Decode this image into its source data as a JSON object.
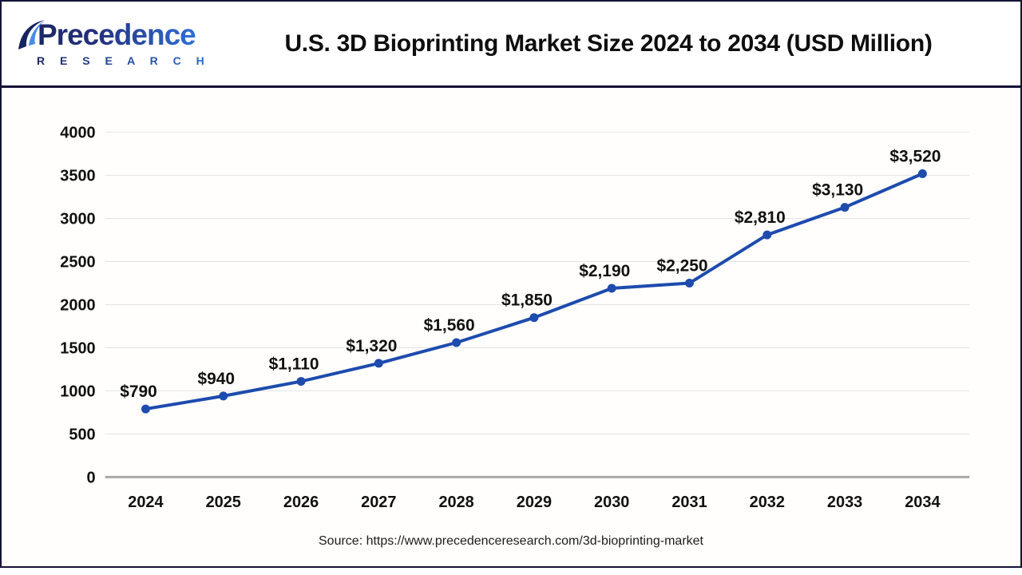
{
  "brand": {
    "name": "Precedence",
    "subname": "R E S E A R C H"
  },
  "header": {
    "title": "U.S. 3D Bioprinting Market Size 2024 to 2034 (USD Million)"
  },
  "source": {
    "text": "Source: https://www.precedenceresearch.com/3d-bioprinting-market"
  },
  "colors": {
    "line": "#1d4bae",
    "marker": "#1d4bae",
    "grid": "#e3e3e3",
    "zero_axis": "#a9a9a9",
    "text": "#111111",
    "frame": "#131336",
    "logo_navy": "#1b2766",
    "logo_blue": "#2f6fd6"
  },
  "chart_data": {
    "type": "line",
    "title": "U.S. 3D Bioprinting Market Size 2024 to 2034 (USD Million)",
    "categories": [
      "2024",
      "2025",
      "2026",
      "2027",
      "2028",
      "2029",
      "2030",
      "2031",
      "2032",
      "2033",
      "2034"
    ],
    "values": [
      790,
      940,
      1110,
      1320,
      1560,
      1850,
      2190,
      2250,
      2810,
      3130,
      3520
    ],
    "point_labels": [
      "$790",
      "$940",
      "$1,110",
      "$1,320",
      "$1,560",
      "$1,850",
      "$2,190",
      "$2,250",
      "$2,810",
      "$3,130",
      "$3,520"
    ],
    "xlabel": "",
    "ylabel": "",
    "ylim": [
      0,
      4000
    ],
    "yticks": [
      0,
      500,
      1000,
      1500,
      2000,
      2500,
      3000,
      3500,
      4000
    ],
    "grid": true,
    "legend": "none"
  }
}
